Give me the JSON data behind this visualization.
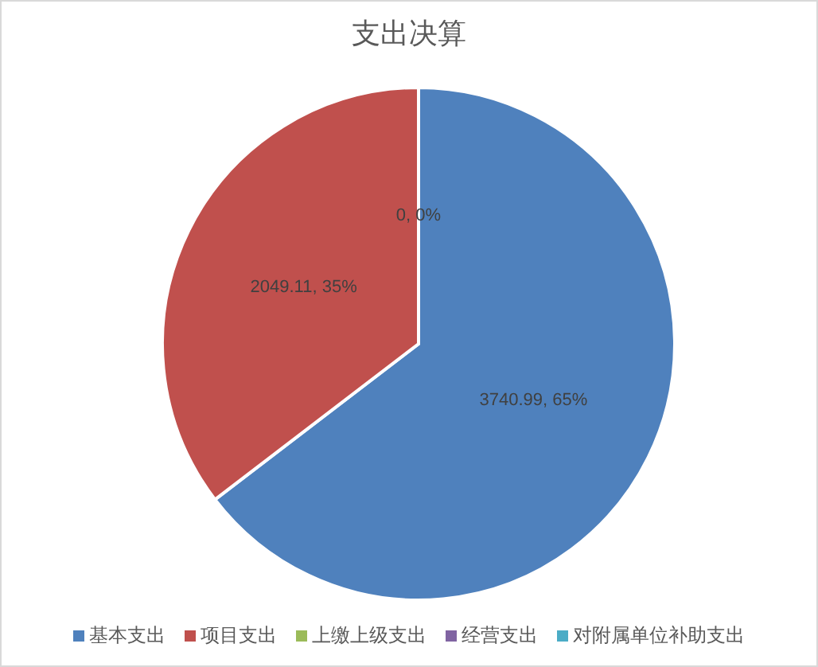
{
  "chart_data": {
    "type": "pie",
    "title": "支出决算",
    "categories": [
      "基本支出",
      "项目支出",
      "上缴上级支出",
      "经营支出",
      "对附属单位补助支出"
    ],
    "values": [
      3740.99,
      2049.11,
      0,
      0,
      0
    ],
    "colors": [
      "#4f81bd",
      "#c0504d",
      "#9bbb59",
      "#8064a2",
      "#4bacc6"
    ],
    "value_labels": [
      "3740.99, 65%",
      "2049.11, 35%",
      "0, 0%",
      null,
      null
    ],
    "legend": "bottom"
  }
}
